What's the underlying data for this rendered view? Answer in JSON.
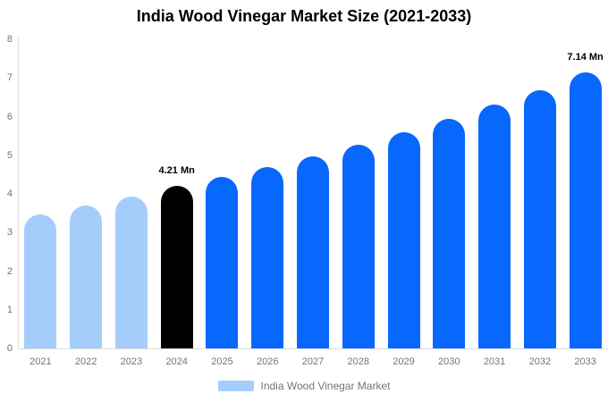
{
  "chart_data": {
    "type": "bar",
    "title": "India Wood Vinegar Market Size (2021-2033)",
    "categories": [
      "2021",
      "2022",
      "2023",
      "2024",
      "2025",
      "2026",
      "2027",
      "2028",
      "2029",
      "2030",
      "2031",
      "2032",
      "2033"
    ],
    "values": [
      3.47,
      3.7,
      3.92,
      4.21,
      4.44,
      4.7,
      4.97,
      5.28,
      5.6,
      5.94,
      6.31,
      6.69,
      7.14
    ],
    "bar_colors": [
      "#a4cdfb",
      "#a4cdfb",
      "#a4cdfb",
      "#000000",
      "#0867fd",
      "#0867fd",
      "#0867fd",
      "#0867fd",
      "#0867fd",
      "#0867fd",
      "#0867fd",
      "#0867fd",
      "#0867fd"
    ],
    "annotations": [
      {
        "index": 3,
        "text": "4.21 Mn"
      },
      {
        "index": 12,
        "text": "7.14 Mn"
      }
    ],
    "xlabel": "",
    "ylabel": "",
    "ylim": [
      0,
      8
    ],
    "yticks": [
      0,
      1,
      2,
      3,
      4,
      5,
      6,
      7,
      8
    ],
    "grid": false,
    "legend": {
      "label": "India Wood Vinegar Market",
      "swatch_color": "#a4cdfb",
      "position": "bottom"
    },
    "colors_meaning": {
      "historical": "#a4cdfb",
      "base_year": "#000000",
      "forecast": "#0867fd"
    },
    "text_color": "#757575",
    "axis_line_color": "#dddddd"
  }
}
